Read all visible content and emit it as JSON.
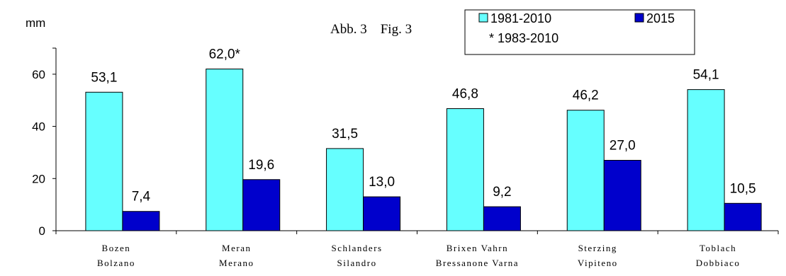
{
  "figure_label": "Abb. 3    Fig. 3",
  "legend": {
    "items": [
      {
        "label": "1981-2010",
        "color": "#66ffff"
      },
      {
        "label": "2015",
        "color": "#0000cc"
      }
    ],
    "note": "* 1983-2010"
  },
  "chart_data": {
    "type": "bar",
    "ylabel": "mm",
    "ylim": [
      0,
      70
    ],
    "yticks": [
      0,
      20,
      40,
      60
    ],
    "grid": false,
    "legend_position": "top-right",
    "categories": [
      [
        "Bozen",
        "Bolzano"
      ],
      [
        "Meran",
        "Merano"
      ],
      [
        "Schlanders",
        "Silandro"
      ],
      [
        "Brixen Vahrn",
        "Bressanone Varna"
      ],
      [
        "Sterzing",
        "Vipiteno"
      ],
      [
        "Toblach",
        "Dobbiaco"
      ]
    ],
    "series": [
      {
        "name": "1981-2010",
        "color": "#66ffff",
        "values": [
          53.1,
          62.0,
          31.5,
          46.8,
          46.2,
          54.1
        ],
        "labels": [
          "53,1",
          "62,0*",
          "31,5",
          "46,8",
          "46,2",
          "54,1"
        ]
      },
      {
        "name": "2015",
        "color": "#0000cc",
        "values": [
          7.4,
          19.6,
          13.0,
          9.2,
          27.0,
          10.5
        ],
        "labels": [
          "7,4",
          "19,6",
          "13,0",
          "9,2",
          "27,0",
          "10,5"
        ]
      }
    ]
  }
}
